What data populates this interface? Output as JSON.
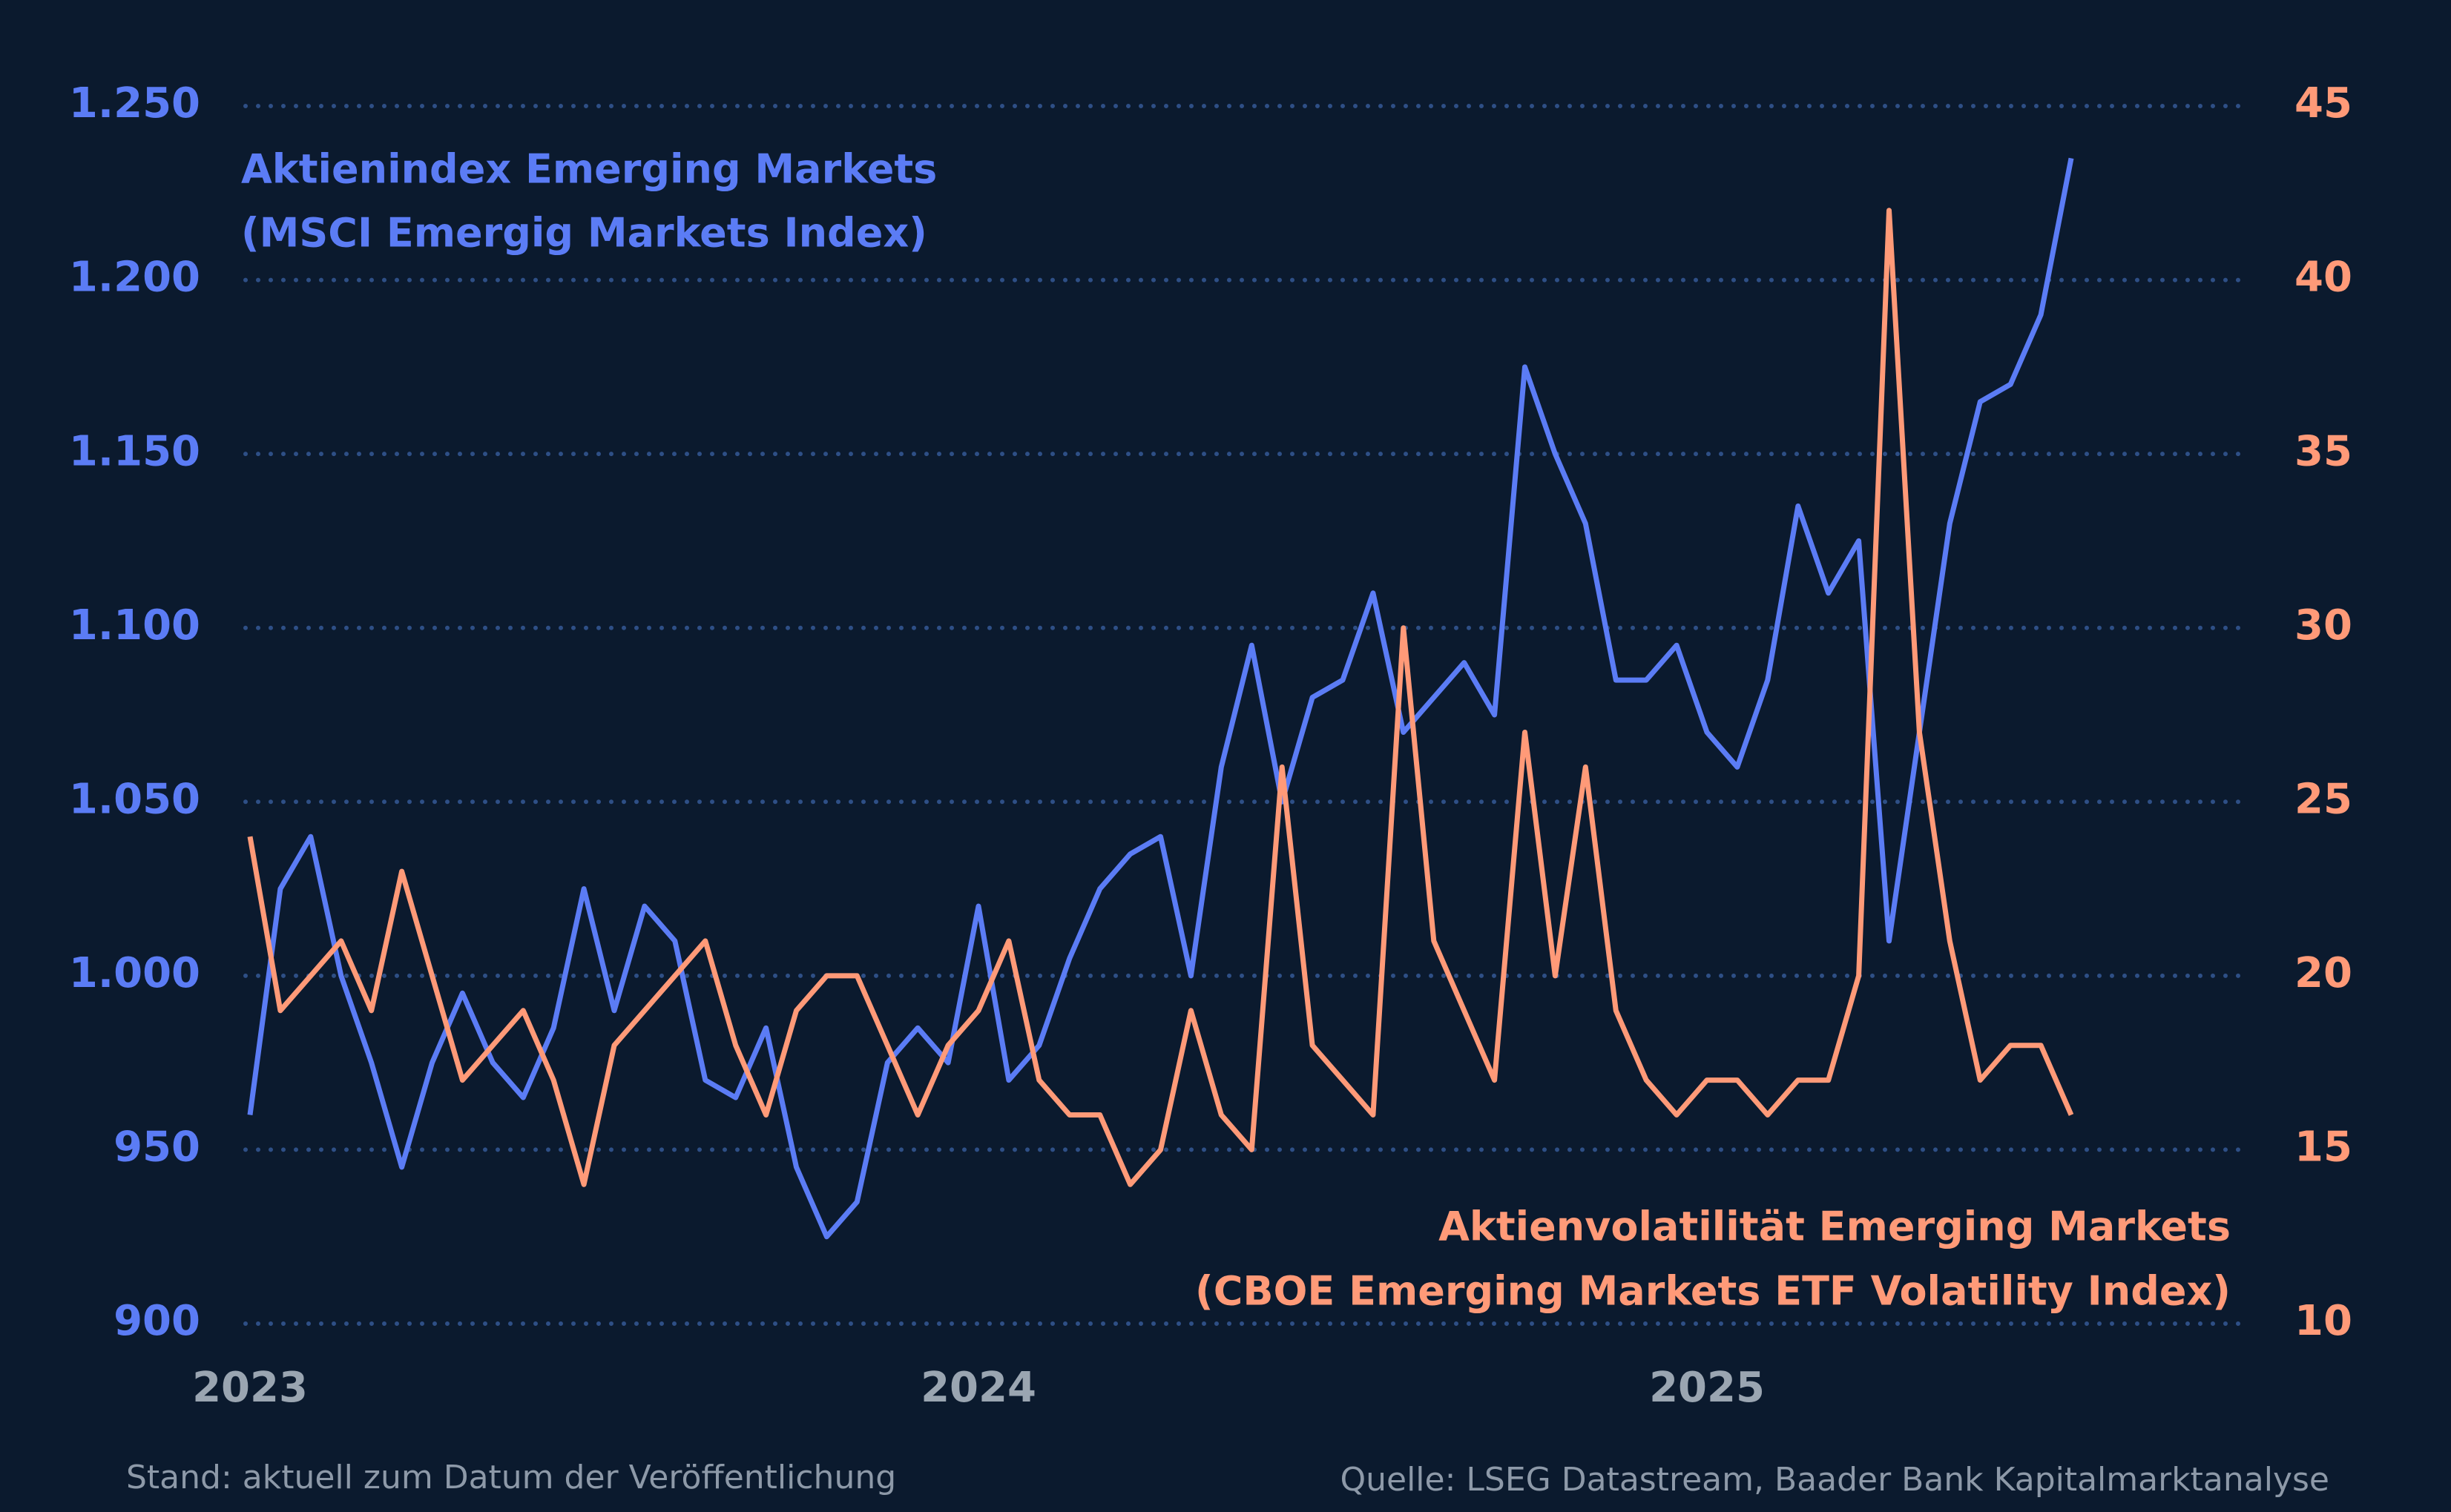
{
  "chart_data": {
    "type": "line",
    "categories": [
      "2023",
      null,
      null,
      null,
      null,
      null,
      null,
      null,
      null,
      null,
      null,
      null,
      null,
      null,
      null,
      null,
      null,
      null,
      null,
      null,
      null,
      null,
      null,
      null,
      "2024",
      null,
      null,
      null,
      null,
      null,
      null,
      null,
      null,
      null,
      null,
      null,
      null,
      null,
      null,
      null,
      null,
      null,
      null,
      null,
      null,
      null,
      null,
      null,
      "2025",
      null,
      null,
      null,
      null,
      null,
      null,
      null,
      null,
      null,
      null,
      null,
      null
    ],
    "series": [
      {
        "name": "Aktienindex Emerging Markets (MSCI Emergig Markets Index)",
        "color": "#5b7cf5",
        "axis": "y",
        "values": [
          960,
          1025,
          1040,
          1000,
          975,
          945,
          975,
          995,
          975,
          965,
          985,
          1025,
          990,
          1020,
          1010,
          970,
          965,
          985,
          945,
          925,
          935,
          975,
          985,
          975,
          1020,
          970,
          980,
          1005,
          1025,
          1035,
          1040,
          1000,
          1060,
          1095,
          1050,
          1080,
          1085,
          1110,
          1070,
          1080,
          1090,
          1075,
          1175,
          1150,
          1130,
          1085,
          1085,
          1095,
          1070,
          1060,
          1085,
          1135,
          1110,
          1125,
          1010,
          1070,
          1130,
          1165,
          1170,
          1190,
          1235
        ]
      },
      {
        "name": "Aktienvolatilität Emerging Markets (CBOE Emerging Markets ETF Volatility Index)",
        "color": "#ff9a78",
        "axis": "y2",
        "values": [
          24,
          19,
          20,
          21,
          19,
          23,
          20,
          17,
          18,
          19,
          17,
          14,
          18,
          19,
          20,
          21,
          18,
          16,
          19,
          20,
          20,
          18,
          16,
          18,
          19,
          21,
          17,
          16,
          16,
          14,
          15,
          19,
          16,
          15,
          26,
          18,
          17,
          16,
          30,
          21,
          19,
          17,
          27,
          20,
          26,
          19,
          17,
          16,
          17,
          17,
          16,
          17,
          17,
          20,
          42,
          27,
          21,
          17,
          18,
          18,
          16
        ]
      }
    ],
    "annotations": [
      "Aktienindex Emerging Markets",
      "(MSCI Emergig Markets Index)",
      "Aktienvolatilität Emerging Markets",
      "(CBOE Emerging Markets ETF Volatility Index)"
    ],
    "ylim": [
      900,
      1250
    ],
    "yticks": [
      900,
      950,
      {
        "value": 1000,
        "label": "1.000"
      },
      {
        "value": 1050,
        "label": "1.050"
      },
      {
        "value": 1100,
        "label": "1.100"
      },
      {
        "value": 1150,
        "label": "1.150"
      },
      {
        "value": 1200,
        "label": "1.200"
      },
      {
        "value": 1250,
        "label": "1.250"
      }
    ],
    "y2lim": [
      10,
      45
    ],
    "y2ticks": [
      10,
      15,
      20,
      25,
      30,
      35,
      40,
      45
    ],
    "grid": true,
    "note": "Stand: aktuell zum Datum der Veröffentlichung",
    "source": "Quelle: LSEG Datastream, Baader Bank Kapitalmarktanalyse"
  }
}
